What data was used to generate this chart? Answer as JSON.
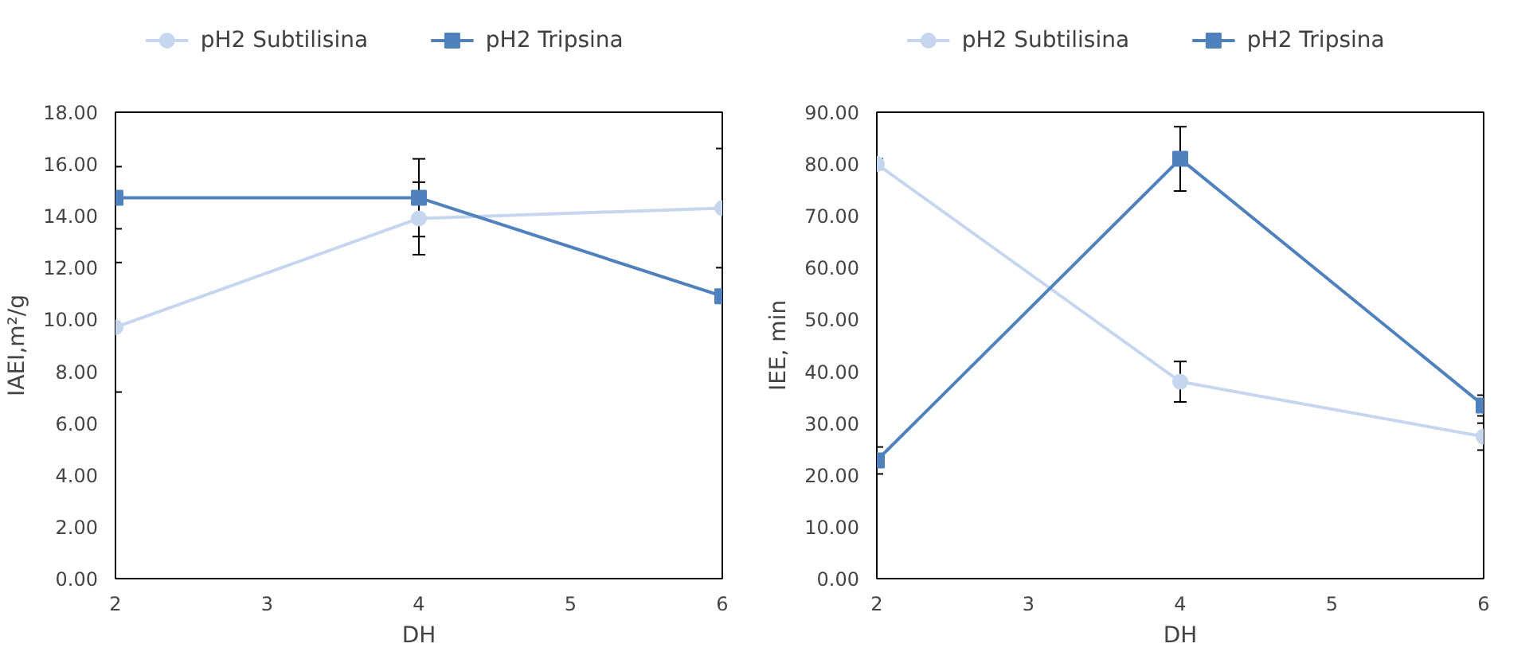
{
  "chart_data": [
    {
      "type": "line",
      "xlabel": "DH",
      "ylabel": "IAEI,m²/g",
      "x": [
        2,
        4,
        6
      ],
      "xlim": [
        2,
        6
      ],
      "xticks": [
        2,
        3,
        4,
        5,
        6
      ],
      "ylim": [
        0,
        18
      ],
      "yticks": [
        {
          "value": 0,
          "label": "0.00"
        },
        {
          "value": 2,
          "label": "2.00"
        },
        {
          "value": 4,
          "label": "4.00"
        },
        {
          "value": 6,
          "label": "6.00"
        },
        {
          "value": 8,
          "label": "8.00"
        },
        {
          "value": 10,
          "label": "10.00"
        },
        {
          "value": 12,
          "label": "12.00"
        },
        {
          "value": 14,
          "label": "14.00"
        },
        {
          "value": 16,
          "label": "16.00"
        },
        {
          "value": 18,
          "label": "18.00"
        }
      ],
      "grid": false,
      "legend": "top",
      "series": [
        {
          "name": "pH2 Subtilisina",
          "color": "#c6d6ee",
          "marker": "circle",
          "values": [
            9.7,
            13.9,
            14.3
          ],
          "errors": [
            2.5,
            1.4,
            2.3
          ]
        },
        {
          "name": "pH2 Tripsina",
          "color": "#4f81bd",
          "marker": "square",
          "values": [
            14.7,
            14.7,
            10.9
          ],
          "errors": [
            1.2,
            1.5,
            null
          ]
        }
      ]
    },
    {
      "type": "line",
      "xlabel": "DH",
      "ylabel": "IEE, min",
      "x": [
        2,
        4,
        6
      ],
      "xlim": [
        2,
        6
      ],
      "xticks": [
        2,
        3,
        4,
        5,
        6
      ],
      "ylim": [
        0,
        90
      ],
      "yticks": [
        {
          "value": 0,
          "label": "0.00"
        },
        {
          "value": 10,
          "label": "10.00"
        },
        {
          "value": 20,
          "label": "20.00"
        },
        {
          "value": 30,
          "label": "30.00"
        },
        {
          "value": 40,
          "label": "40.00"
        },
        {
          "value": 50,
          "label": "50.00"
        },
        {
          "value": 60,
          "label": "60.00"
        },
        {
          "value": 70,
          "label": "70.00"
        },
        {
          "value": 80,
          "label": "80.00"
        },
        {
          "value": 90,
          "label": "90.00"
        }
      ],
      "grid": false,
      "legend": "top",
      "series": [
        {
          "name": "pH2 Subtilisina",
          "color": "#c6d6ee",
          "marker": "circle",
          "values": [
            80,
            38,
            27.4
          ],
          "errors": [
            1,
            3.9,
            2.6
          ]
        },
        {
          "name": "pH2 Tripsina",
          "color": "#4f81bd",
          "marker": "square",
          "values": [
            22.8,
            81,
            33.4
          ],
          "errors": [
            2.6,
            6.2,
            2
          ]
        }
      ]
    }
  ]
}
